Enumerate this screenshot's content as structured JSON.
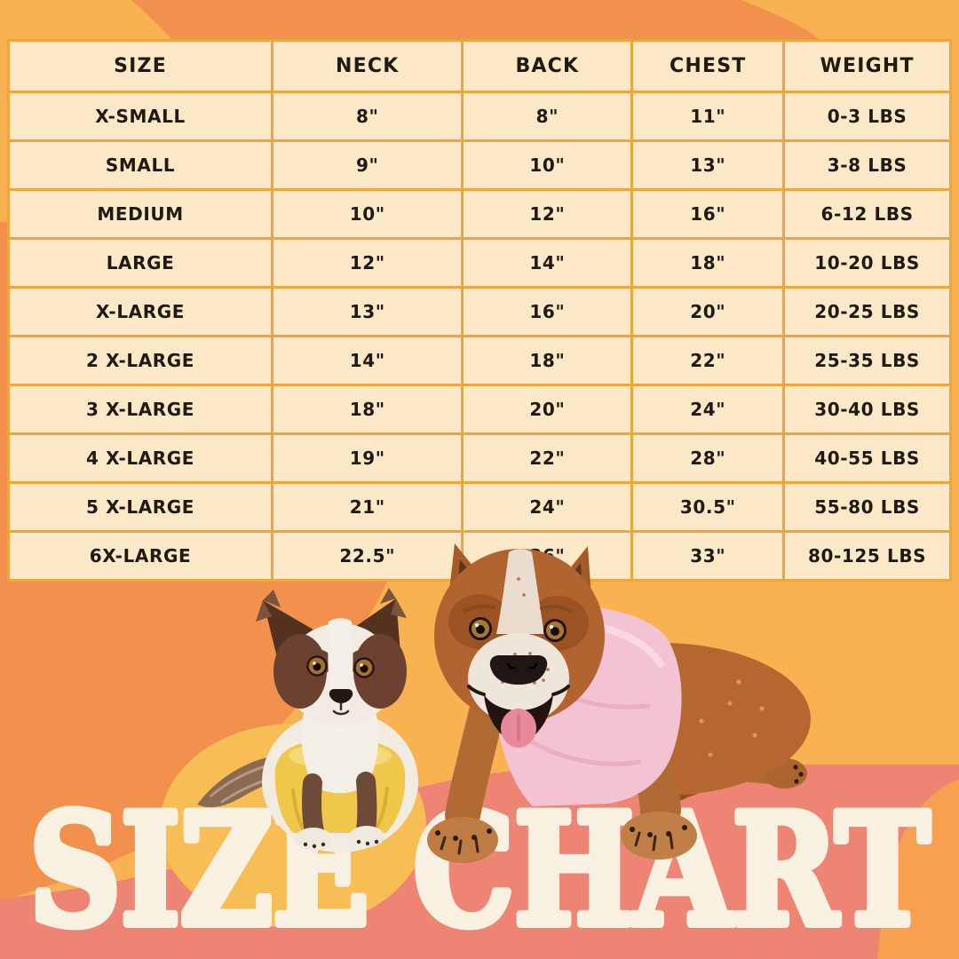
{
  "title": "SIZE CHART",
  "chart_data": {
    "type": "table",
    "title": "SIZE CHART",
    "columns": [
      "SIZE",
      "NECK",
      "BACK",
      "CHEST",
      "WEIGHT"
    ],
    "rows": [
      [
        "X-SMALL",
        "8\"",
        "8\"",
        "11\"",
        "0-3 LBS"
      ],
      [
        "SMALL",
        "9\"",
        "10\"",
        "13\"",
        "3-8 LBS"
      ],
      [
        "MEDIUM",
        "10\"",
        "12\"",
        "16\"",
        "6-12 LBS"
      ],
      [
        "LARGE",
        "12\"",
        "14\"",
        "18\"",
        "10-20 LBS"
      ],
      [
        "X-LARGE",
        "13\"",
        "16\"",
        "20\"",
        "20-25 LBS"
      ],
      [
        "2 X-LARGE",
        "14\"",
        "18\"",
        "22\"",
        "25-35 LBS"
      ],
      [
        "3 X-LARGE",
        "18\"",
        "20\"",
        "24\"",
        "30-40 LBS"
      ],
      [
        "4 X-LARGE",
        "19\"",
        "22\"",
        "28\"",
        "40-55 LBS"
      ],
      [
        "5 X-LARGE",
        "21\"",
        "24\"",
        "30.5\"",
        "55-80 LBS"
      ],
      [
        "6X-LARGE",
        "22.5\"",
        "26\"",
        "33\"",
        "80-125 LBS"
      ]
    ]
  },
  "colors": {
    "base": "#F9B251",
    "shape_orange": "#F2914E",
    "salmon": "#EE8574",
    "blob_orange": "#F7A04F",
    "gold_blob": "#F6BE55",
    "cell_bg": "#FAE8C7",
    "cell_border": "#F0A43C",
    "cell_text": "#201A12",
    "title_text": "#F8F1E2",
    "shirt_yellow": "#EFC84B",
    "shirt_pink": "#F4C3D3"
  },
  "illustration": {
    "left_dog": "chihuahua wearing yellow shirt",
    "right_dog": "cattle dog wearing pink shirt"
  }
}
